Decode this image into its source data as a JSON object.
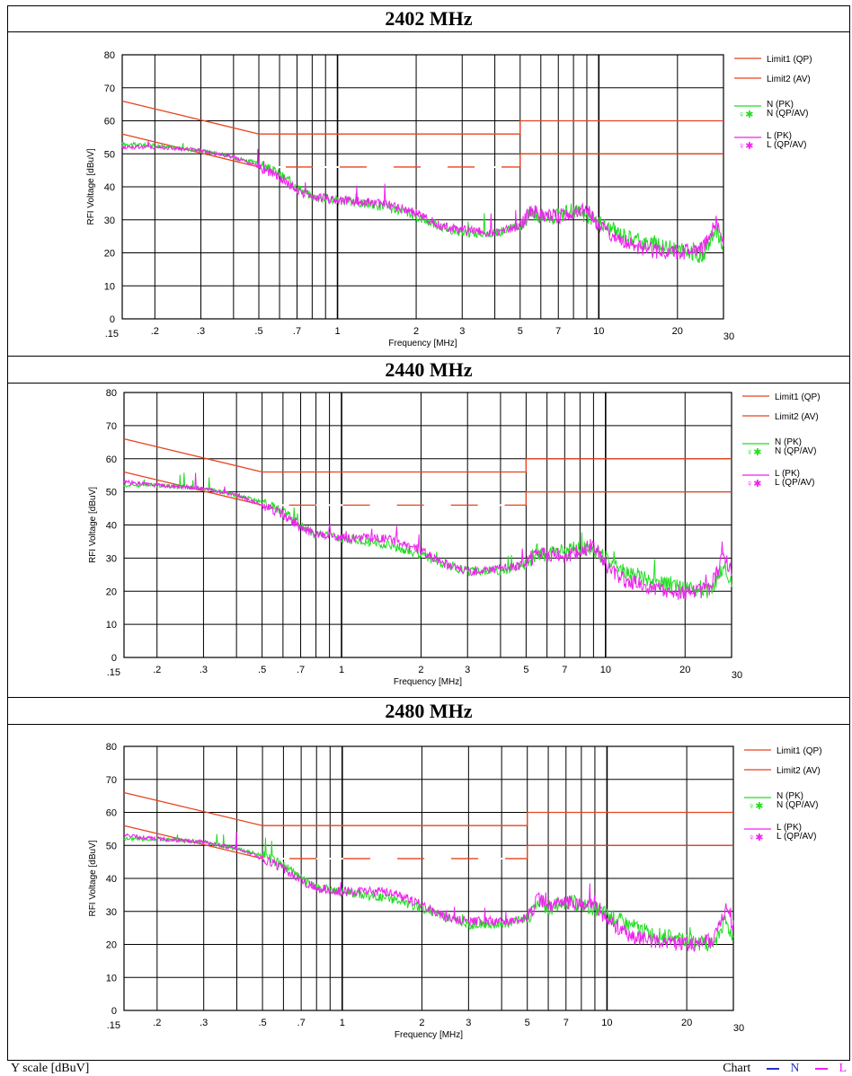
{
  "colors": {
    "limit": "#e8431e",
    "N": "#22dd22",
    "L": "#ee22ee",
    "grid": "#000000"
  },
  "axis": {
    "ylabel": "RFI Voltage [dBuV]",
    "xlabel": "Frequency [MHz]",
    "yticks": [
      "0",
      "10",
      "20",
      "30",
      "40",
      "50",
      "60",
      "70",
      "80"
    ],
    "xticks": [
      ".15",
      ".2",
      ".3",
      ".5",
      ".7",
      "1",
      "2",
      "3",
      "5",
      "7",
      "10",
      "20",
      "30"
    ]
  },
  "legend": {
    "limit1": "Limit1 (QP)",
    "limit2": "Limit2 (AV)",
    "n_pk": "N (PK)",
    "n_qpav": "N (QP/AV)",
    "l_pk": "L (PK)",
    "l_qpav": "L (QP/AV)"
  },
  "footer": {
    "left": "Y scale [dBuV]",
    "chart": "Chart",
    "n": "N",
    "l": "L"
  },
  "chart_data": [
    {
      "type": "line",
      "title": "2402 MHz",
      "xlabel": "Frequency [MHz]",
      "ylabel": "RFI Voltage [dBuV]",
      "xscale": "log",
      "xlim": [
        0.15,
        30
      ],
      "ylim": [
        0,
        80
      ],
      "grid": true,
      "legend": "right",
      "series": [
        {
          "name": "Limit1 (QP)",
          "x": [
            0.15,
            0.5,
            0.5,
            5,
            5,
            30
          ],
          "y": [
            66,
            56,
            56,
            56,
            60,
            60
          ]
        },
        {
          "name": "Limit2 (AV)",
          "x": [
            0.15,
            0.5,
            0.5,
            5,
            5,
            30
          ],
          "y": [
            56,
            46,
            46,
            46,
            50,
            50
          ]
        },
        {
          "name": "N (PK)",
          "x": [
            0.15,
            0.2,
            0.3,
            0.4,
            0.5,
            0.6,
            0.7,
            0.8,
            1,
            1.5,
            2,
            2.5,
            3,
            4,
            5,
            5.5,
            6,
            7,
            8,
            9,
            10,
            12,
            15,
            20,
            25,
            28,
            30
          ],
          "y": [
            53,
            52.5,
            51,
            49,
            47,
            44,
            40,
            37,
            36,
            34,
            31,
            28,
            26,
            26,
            28,
            32,
            31,
            31,
            33,
            31,
            29,
            26,
            23,
            21,
            19,
            27,
            22
          ]
        },
        {
          "name": "L (PK)",
          "x": [
            0.15,
            0.2,
            0.3,
            0.4,
            0.5,
            0.6,
            0.7,
            0.8,
            1,
            1.5,
            2,
            2.5,
            3,
            4,
            5,
            5.5,
            6,
            7,
            8,
            9,
            10,
            12,
            15,
            20,
            25,
            28,
            30
          ],
          "y": [
            52,
            52,
            51,
            49,
            46,
            43,
            39,
            37,
            36,
            35,
            32,
            28,
            27,
            26,
            28,
            33,
            31,
            31,
            32,
            33,
            28,
            24,
            21,
            20,
            21,
            30,
            24
          ]
        }
      ]
    },
    {
      "type": "line",
      "title": "2440 MHz",
      "xlabel": "Frequency [MHz]",
      "ylabel": "RFI Voltage [dBuV]",
      "xscale": "log",
      "xlim": [
        0.15,
        30
      ],
      "ylim": [
        0,
        80
      ],
      "grid": true,
      "legend": "right",
      "series": [
        {
          "name": "Limit1 (QP)",
          "x": [
            0.15,
            0.5,
            0.5,
            5,
            5,
            30
          ],
          "y": [
            66,
            56,
            56,
            56,
            60,
            60
          ]
        },
        {
          "name": "Limit2 (AV)",
          "x": [
            0.15,
            0.5,
            0.5,
            5,
            5,
            30
          ],
          "y": [
            56,
            46,
            46,
            46,
            50,
            50
          ]
        },
        {
          "name": "N (PK)",
          "x": [
            0.15,
            0.2,
            0.3,
            0.4,
            0.5,
            0.6,
            0.7,
            0.8,
            1,
            1.5,
            2,
            2.5,
            3,
            4,
            5,
            5.5,
            6,
            7,
            8,
            9,
            10,
            12,
            15,
            20,
            25,
            28,
            30
          ],
          "y": [
            52,
            52,
            51,
            49,
            47,
            44,
            40,
            37,
            36,
            34,
            31,
            28,
            26,
            26,
            28,
            32,
            31,
            32,
            33,
            32,
            30,
            26,
            23,
            21,
            20,
            27,
            22
          ]
        },
        {
          "name": "L (PK)",
          "x": [
            0.15,
            0.2,
            0.3,
            0.4,
            0.5,
            0.6,
            0.7,
            0.8,
            1,
            1.5,
            2,
            2.5,
            3,
            4,
            5,
            5.5,
            6,
            7,
            8,
            9,
            10,
            12,
            15,
            20,
            25,
            28,
            30
          ],
          "y": [
            53,
            52,
            51,
            49,
            46,
            43,
            39,
            37,
            36,
            36,
            32,
            28,
            26,
            27,
            28,
            32,
            31,
            31,
            32,
            34,
            28,
            23,
            21,
            19,
            21,
            31,
            26
          ]
        }
      ]
    },
    {
      "type": "line",
      "title": "2480 MHz",
      "xlabel": "Frequency [MHz]",
      "ylabel": "RFI Voltage [dBuV]",
      "xscale": "log",
      "xlim": [
        0.15,
        30
      ],
      "ylim": [
        0,
        80
      ],
      "grid": true,
      "legend": "right",
      "series": [
        {
          "name": "Limit1 (QP)",
          "x": [
            0.15,
            0.5,
            0.5,
            5,
            5,
            30
          ],
          "y": [
            66,
            56,
            56,
            56,
            60,
            60
          ]
        },
        {
          "name": "Limit2 (AV)",
          "x": [
            0.15,
            0.5,
            0.5,
            5,
            5,
            30
          ],
          "y": [
            56,
            46,
            46,
            46,
            50,
            50
          ]
        },
        {
          "name": "N (PK)",
          "x": [
            0.15,
            0.2,
            0.3,
            0.4,
            0.5,
            0.6,
            0.7,
            0.8,
            1,
            1.5,
            2,
            2.5,
            3,
            4,
            5,
            5.5,
            6,
            7,
            8,
            9,
            10,
            12,
            15,
            20,
            25,
            28,
            30
          ],
          "y": [
            52,
            52,
            51,
            49,
            47,
            44,
            40,
            37,
            36,
            34,
            31,
            28,
            26,
            26,
            28,
            33,
            31,
            33,
            32,
            31,
            29,
            26,
            23,
            21,
            20,
            27,
            22
          ]
        },
        {
          "name": "L (PK)",
          "x": [
            0.15,
            0.2,
            0.3,
            0.4,
            0.5,
            0.6,
            0.7,
            0.8,
            1,
            1.5,
            2,
            2.5,
            3,
            4,
            5,
            5.5,
            6,
            7,
            8,
            9,
            10,
            12,
            15,
            20,
            25,
            28,
            30
          ],
          "y": [
            53,
            52,
            51,
            49,
            46,
            43,
            39,
            37,
            36,
            36,
            32,
            28,
            27,
            27,
            28,
            34,
            31,
            33,
            32,
            33,
            27,
            23,
            21,
            20,
            21,
            31,
            26
          ]
        }
      ]
    }
  ]
}
